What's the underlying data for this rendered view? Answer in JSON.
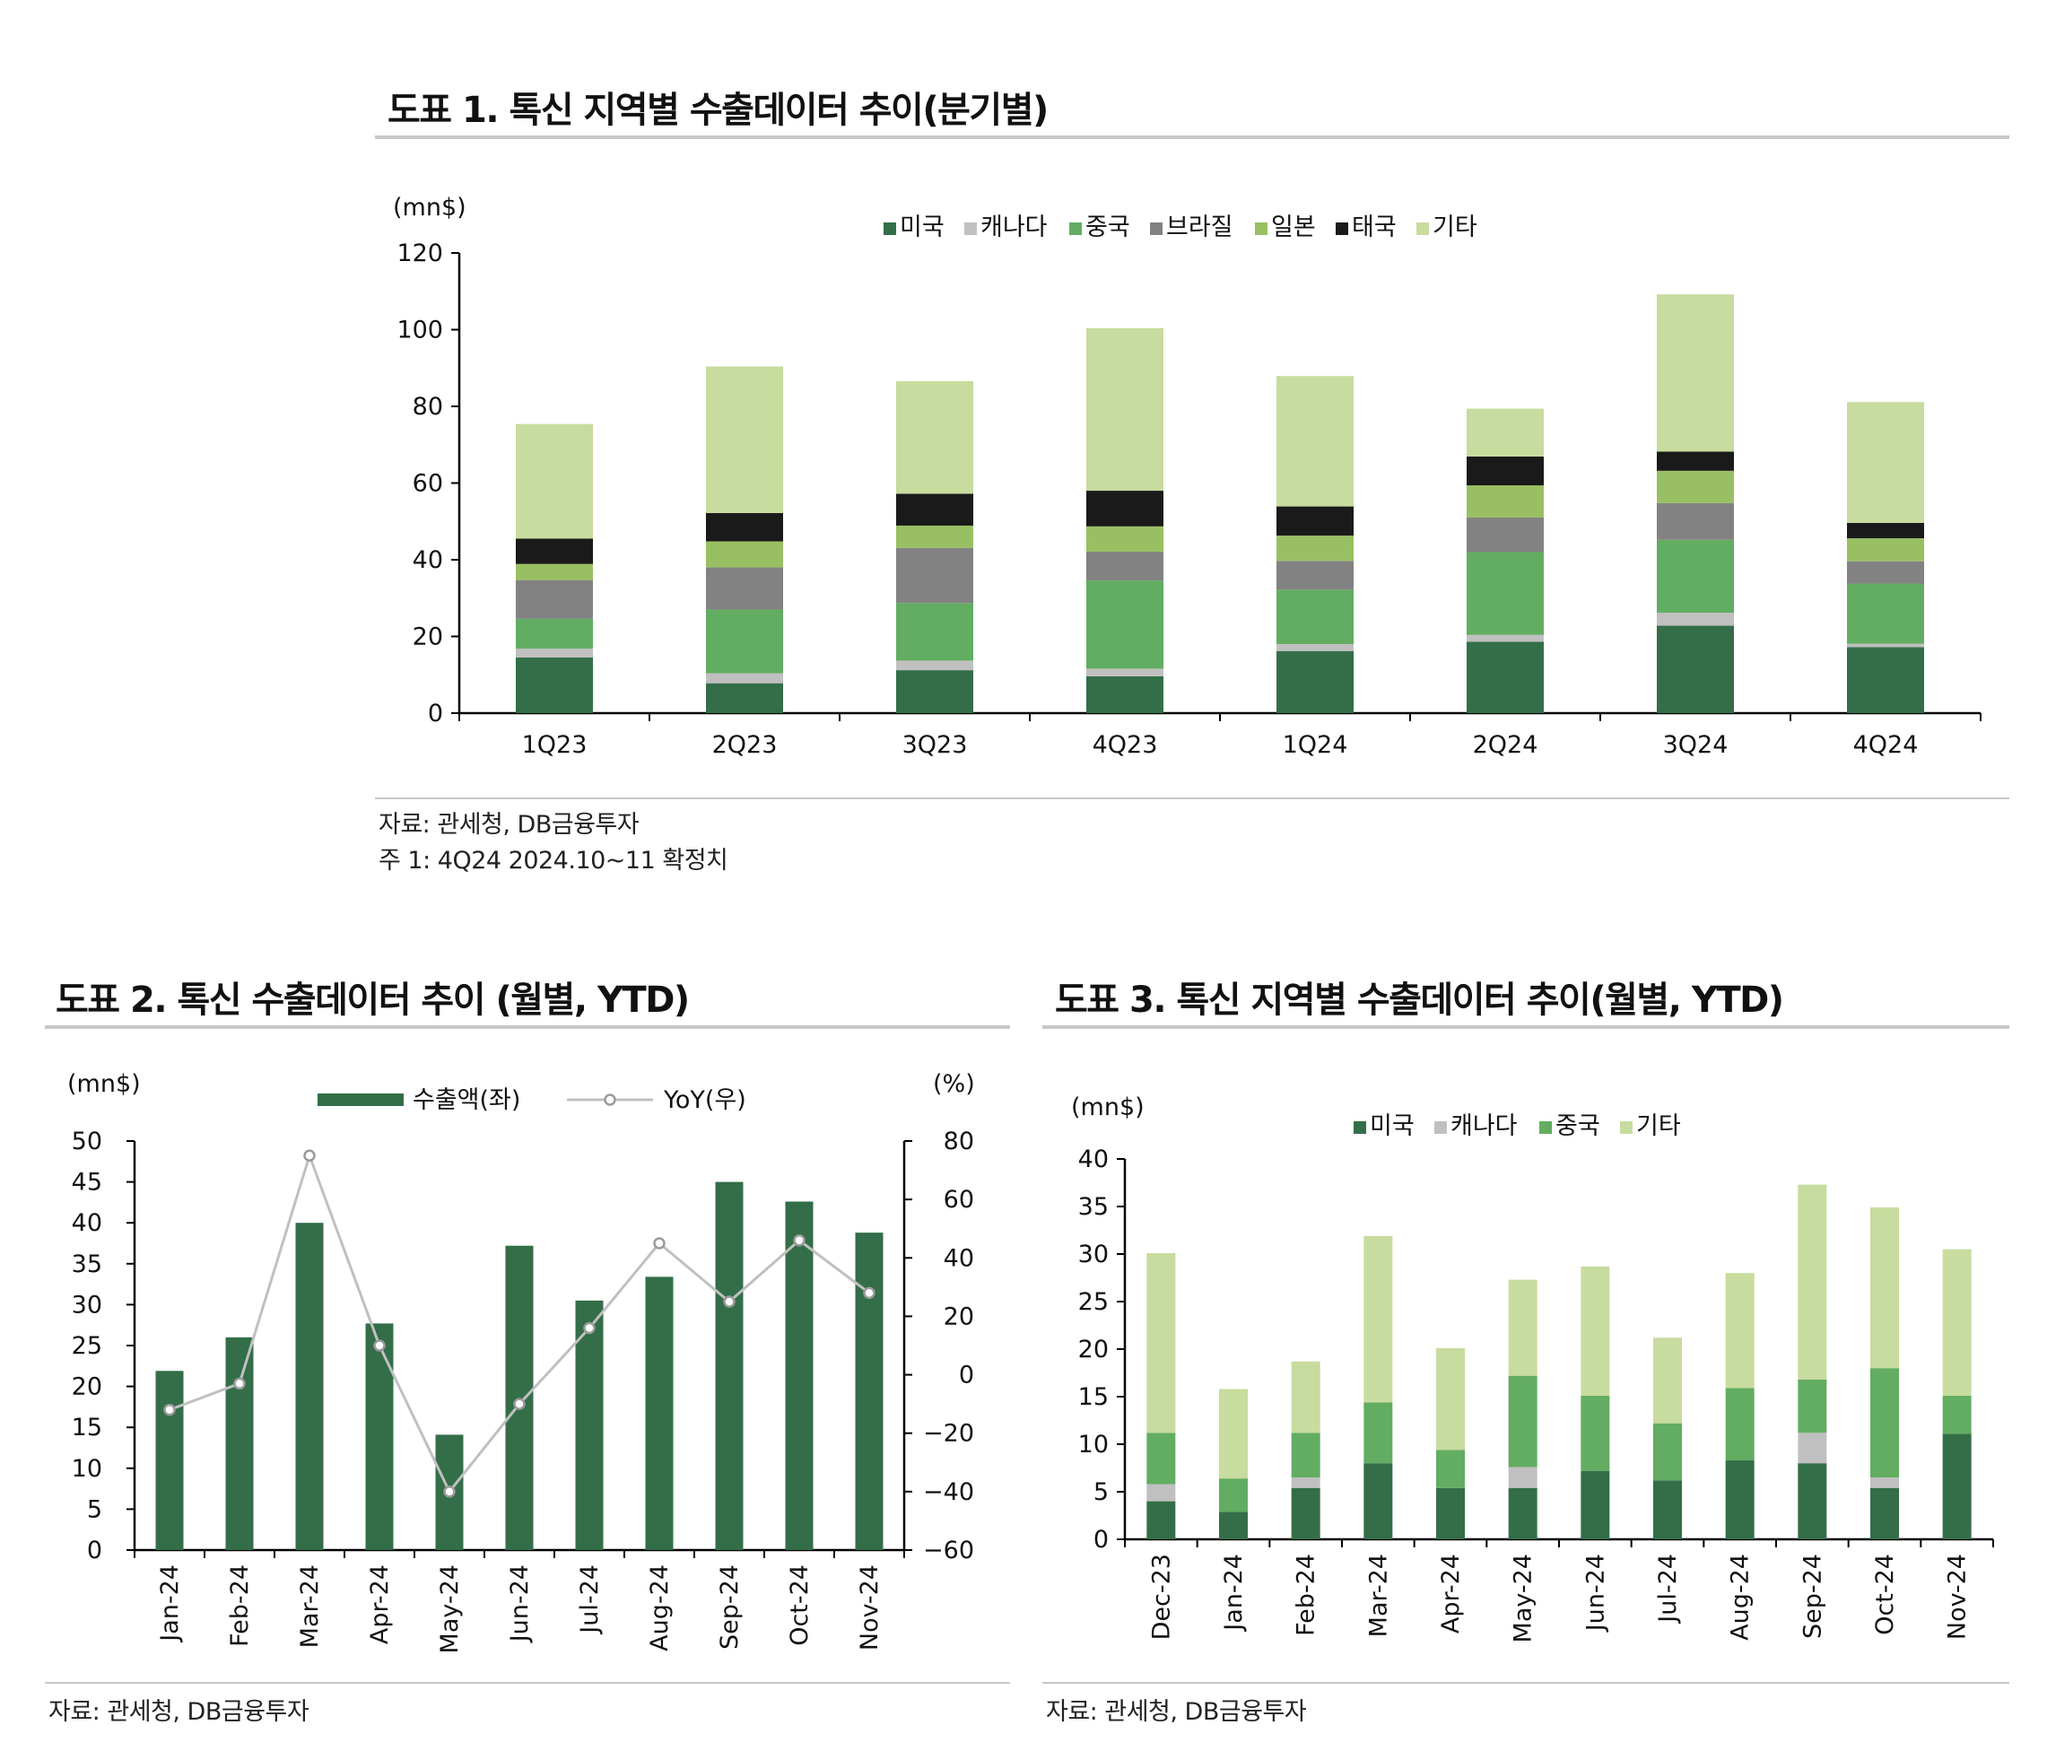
{
  "colors": {
    "us": "#336e48",
    "canada": "#c0c0c0",
    "china": "#62ad62",
    "brazil": "#828282",
    "japan": "#98c062",
    "thailand": "#1a1a1a",
    "other": "#c7dc9e",
    "export_bar": "#336e48",
    "yoy_line": "#c0c0c0"
  },
  "fig1": {
    "title": "도표 1. 톡신 지역별 수출데이터 추이(분기별)",
    "source": "자료: 관세청, DB금융투자",
    "footnote": "주 1: 4Q24 2024.10~11 확정치"
  },
  "fig2": {
    "title": "도표 2. 톡신 수출데이터 추이 (월별, YTD)",
    "source": "자료: 관세청, DB금융투자"
  },
  "fig3": {
    "title": "도표 3. 톡신 지역별 수출데이터 추이(월별, YTD)",
    "source": "자료: 관세청, DB금융투자"
  },
  "chart_data": [
    {
      "id": "fig1",
      "type": "bar",
      "stacked": true,
      "unit_label": "(mn$)",
      "categories": [
        "1Q23",
        "2Q23",
        "3Q23",
        "4Q23",
        "1Q24",
        "2Q24",
        "3Q24",
        "4Q24"
      ],
      "ylim": [
        0,
        120
      ],
      "yticks": [
        0,
        20,
        40,
        60,
        80,
        100,
        120
      ],
      "series": [
        {
          "key": "us",
          "name": "미국",
          "values": [
            14.5,
            7.8,
            11.2,
            9.6,
            16.2,
            18.6,
            22.8,
            17.2
          ]
        },
        {
          "key": "canada",
          "name": "캐나다",
          "values": [
            2.3,
            2.6,
            2.5,
            2.0,
            1.8,
            1.8,
            3.4,
            0.9
          ]
        },
        {
          "key": "china",
          "name": "중국",
          "values": [
            7.8,
            16.6,
            15.0,
            23.0,
            14.2,
            21.6,
            19.0,
            15.7
          ]
        },
        {
          "key": "brazil",
          "name": "브라질",
          "values": [
            10.1,
            11.0,
            14.4,
            7.5,
            7.5,
            9.0,
            9.6,
            5.8
          ]
        },
        {
          "key": "japan",
          "name": "일본",
          "values": [
            4.2,
            6.8,
            5.8,
            6.6,
            6.6,
            8.4,
            8.4,
            6.0
          ]
        },
        {
          "key": "thailand",
          "name": "태국",
          "values": [
            6.6,
            7.4,
            8.3,
            9.3,
            7.6,
            7.5,
            5.0,
            4.0
          ]
        },
        {
          "key": "other",
          "name": "기타",
          "values": [
            29.9,
            38.2,
            29.4,
            42.4,
            34.0,
            12.5,
            41.0,
            31.5
          ]
        }
      ]
    },
    {
      "id": "fig2",
      "type": "bar+line",
      "unit_label_left": "(mn$)",
      "unit_label_right": "(%)",
      "categories": [
        "Jan-24",
        "Feb-24",
        "Mar-24",
        "Apr-24",
        "May-24",
        "Jun-24",
        "Jul-24",
        "Aug-24",
        "Sep-24",
        "Oct-24",
        "Nov-24"
      ],
      "ylim_left": [
        0,
        50
      ],
      "yticks_left": [
        0,
        5,
        10,
        15,
        20,
        25,
        30,
        35,
        40,
        45,
        50
      ],
      "ylim_right": [
        -60,
        80
      ],
      "yticks_right": [
        -60,
        -40,
        -20,
        0,
        20,
        40,
        60,
        80
      ],
      "series": [
        {
          "key": "export_bar",
          "name": "수출액(좌)",
          "type": "bar",
          "axis": "left",
          "values": [
            21.9,
            26.0,
            40.0,
            27.7,
            14.1,
            37.2,
            30.5,
            33.4,
            45.0,
            42.6,
            38.8
          ]
        },
        {
          "key": "yoy_line",
          "name": "YoY(우)",
          "type": "line",
          "axis": "right",
          "values": [
            -12,
            -3,
            75,
            10,
            -40,
            -10,
            16,
            45,
            25,
            46,
            28
          ]
        }
      ]
    },
    {
      "id": "fig3",
      "type": "bar",
      "stacked": true,
      "unit_label": "(mn$)",
      "categories": [
        "Dec-23",
        "Jan-24",
        "Feb-24",
        "Mar-24",
        "Apr-24",
        "May-24",
        "Jun-24",
        "Jul-24",
        "Aug-24",
        "Sep-24",
        "Oct-24",
        "Nov-24"
      ],
      "ylim": [
        0,
        40
      ],
      "yticks": [
        0,
        5,
        10,
        15,
        20,
        25,
        30,
        35,
        40
      ],
      "series": [
        {
          "key": "us",
          "name": "미국",
          "values": [
            4.0,
            2.9,
            5.4,
            8.0,
            5.4,
            5.4,
            7.2,
            6.2,
            8.3,
            8.0,
            5.4,
            11.1
          ]
        },
        {
          "key": "canada",
          "name": "캐나다",
          "values": [
            1.8,
            0.0,
            1.1,
            0.0,
            0.0,
            2.2,
            0.0,
            0.0,
            0.0,
            3.2,
            1.1,
            0.0
          ]
        },
        {
          "key": "china",
          "name": "중국",
          "values": [
            5.4,
            3.5,
            4.7,
            6.4,
            4.0,
            9.6,
            7.9,
            6.0,
            7.6,
            5.6,
            11.5,
            4.0
          ]
        },
        {
          "key": "other",
          "name": "기타",
          "values": [
            18.9,
            9.4,
            7.5,
            17.5,
            10.7,
            10.1,
            13.6,
            9.0,
            12.1,
            20.5,
            16.9,
            15.4
          ]
        }
      ]
    }
  ]
}
